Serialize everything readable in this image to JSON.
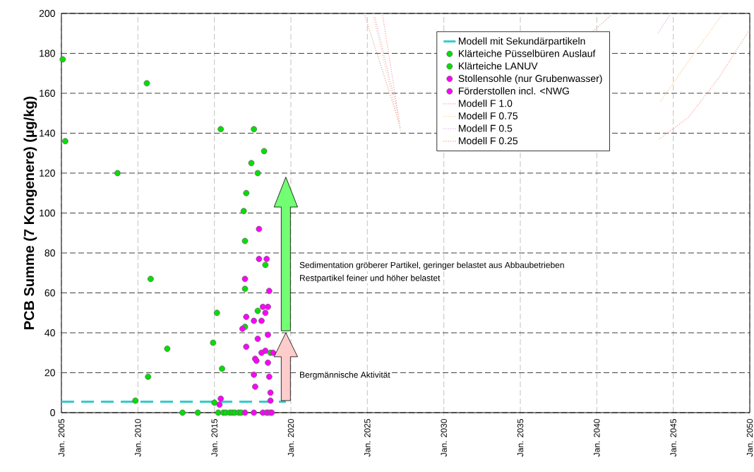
{
  "chart_data": {
    "type": "scatter",
    "ylabel": "PCB Summe (7 Kongenere)  (µg/kg)",
    "xlim": [
      "2005-01",
      "2050-01"
    ],
    "xticks": [
      {
        "value": "2005-01",
        "label": "Jan. 2005"
      },
      {
        "value": "2010-01",
        "label": "Jan. 2010"
      },
      {
        "value": "2015-01",
        "label": "Jan. 2015"
      },
      {
        "value": "2020-01",
        "label": "Jan. 2020"
      },
      {
        "value": "2025-01",
        "label": "Jan. 2025"
      },
      {
        "value": "2030-01",
        "label": "Jan. 2030"
      },
      {
        "value": "2035-01",
        "label": "Jan. 2035"
      },
      {
        "value": "2040-01",
        "label": "Jan. 2040"
      },
      {
        "value": "2045-01",
        "label": "Jan. 2045"
      },
      {
        "value": "2050-01",
        "label": "Jan. 2050"
      }
    ],
    "ylim": [
      0,
      200
    ],
    "yticks": [
      0,
      20,
      40,
      60,
      80,
      100,
      120,
      140,
      160,
      180,
      200
    ],
    "grid": true,
    "legend": "top right",
    "marker": "circle",
    "annotations": [
      "Sedimentation gröberer Partikel, geringer belastet aus Abbaubetrieben",
      "Restpartikel feiner und höher belastet",
      "Bergmännische Aktivität"
    ],
    "series": [
      {
        "name": "Modell mit Sekundärpartikeln",
        "type": "line",
        "line_style": "dashed",
        "marker": "none",
        "color": "#33cccc",
        "x": [
          "2005-01",
          "2019-09"
        ],
        "values": [
          5.5,
          5.5
        ]
      },
      {
        "name": "Klärteiche Püsselbüren Auslauf",
        "color": "#00e000",
        "x": [
          "2005-02",
          "2005-04",
          "2008-09",
          "2009-11",
          "2010-08",
          "2010-09",
          "2010-11",
          "2011-12",
          "2012-12",
          "2013-12",
          "2014-12",
          "2015-01",
          "2015-03",
          "2015-07",
          "2015-04",
          "2015-08",
          "2015-10",
          "2016-01",
          "2016-03",
          "2016-05",
          "2016-08",
          "2016-10",
          "2017-01",
          "2018-05",
          "2018-09"
        ],
        "values": [
          177,
          136,
          120,
          6,
          165,
          18,
          67,
          32,
          0,
          0,
          35,
          5,
          50,
          22,
          0,
          0,
          0,
          0,
          0,
          0,
          0,
          0,
          62,
          74,
          30
        ]
      },
      {
        "name": "Klärteiche LANUV",
        "color": "#00e000",
        "x": [
          "2015-06",
          "2017-08",
          "2018-04",
          "2017-06",
          "2017-11",
          "2017-02",
          "2016-12",
          "2017-01",
          "2017-01",
          "2017-11"
        ],
        "values": [
          142,
          142,
          131,
          125,
          120,
          110,
          101,
          86,
          43,
          51
        ]
      },
      {
        "name": "Stollensohle (nur Grubenwasser)",
        "color": "#ff00ff",
        "x": [
          "2017-12",
          "2018-07",
          "2018-07",
          "2017-02",
          "2018-05",
          "2017-10",
          "2017-09",
          "2018-09",
          "2015-05",
          "2017-01",
          "2017-08",
          "2018-03",
          "2018-06",
          "2018-07",
          "2018-09",
          "2018-10"
        ],
        "values": [
          77,
          53,
          39,
          33,
          31,
          26,
          13,
          6,
          4,
          0,
          0,
          0,
          0,
          0,
          0,
          0
        ]
      },
      {
        "name": "Förderstollen incl. <NWG",
        "color": "#ff00ff",
        "x": [
          "2017-12",
          "2018-06",
          "2017-01",
          "2018-08",
          "2018-03",
          "2018-05",
          "2017-02",
          "2017-08",
          "2018-02",
          "2016-11",
          "2017-11",
          "2018-02",
          "2018-11",
          "2017-09",
          "2018-07",
          "2017-08",
          "2018-08",
          "2018-09",
          "2015-06"
        ],
        "values": [
          92,
          77,
          67,
          61,
          53,
          50,
          48,
          46,
          46,
          42,
          37,
          30,
          30,
          27,
          25,
          19,
          18,
          10,
          7
        ]
      },
      {
        "name": "Modell F 1.0",
        "type": "line",
        "line_style": "dotted",
        "marker": "none",
        "color": "#ff9999",
        "x": [
          "2026-01",
          "2027-03",
          "2035-01",
          "2044-02",
          "2046-01",
          "2048-01",
          "2050-01"
        ],
        "values": [
          199,
          142,
          null,
          137,
          148,
          168,
          192
        ]
      },
      {
        "name": "Modell F 0.75",
        "type": "line",
        "line_style": "dotted",
        "marker": "none",
        "color": "#ffc880",
        "x": [
          "2025-06",
          "2027-03",
          "2035-01",
          "2044-03",
          "2046-03",
          "2048-03"
        ],
        "values": [
          198,
          141,
          null,
          156,
          178,
          199
        ]
      },
      {
        "name": "Modell F 0.5",
        "type": "line",
        "line_style": "dotted",
        "marker": "none",
        "color": "#d8a8e8",
        "x": [
          "2025-07",
          "2027-01",
          "2035-01",
          "2044-01",
          "2044-10"
        ],
        "values": [
          198,
          150,
          null,
          190,
          199
        ]
      },
      {
        "name": "Modell F 0.25",
        "type": "line",
        "line_style": "dotted",
        "marker": "none",
        "color": "#e0a090",
        "x": [
          "2024-11",
          "2027-02",
          "2035-01",
          "2039-10",
          "2040-12"
        ],
        "values": [
          199,
          145,
          null,
          191,
          199
        ]
      }
    ]
  }
}
